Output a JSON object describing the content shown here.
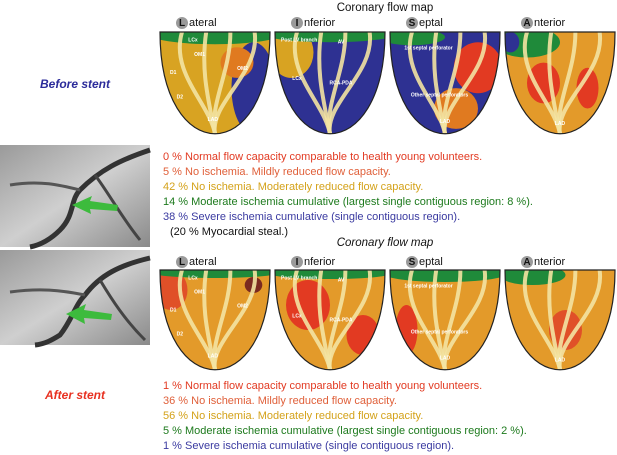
{
  "panels": [
    {
      "caption": "Before stent",
      "title": "Coronary flow map",
      "views": [
        {
          "initial": "L",
          "rest": "ateral",
          "labels": [
            "LCx",
            "OM1",
            "OM2",
            "D1",
            "D2",
            "LAD"
          ]
        },
        {
          "initial": "I",
          "rest": "nferior",
          "labels": [
            "Post LV branch",
            "AV",
            "LCx",
            "RCA-PDA"
          ]
        },
        {
          "initial": "S",
          "rest": "eptal",
          "labels": [
            "1st septal perforator",
            "Other septal perforators",
            "LAD"
          ]
        },
        {
          "initial": "A",
          "rest": "nterior",
          "labels": [
            "LAD"
          ]
        }
      ],
      "findings": [
        "0 % Normal flow capacity comparable to health young volunteers.",
        "5 % No ischemia. Mildly reduced flow capacity.",
        "42 % No ischemia. Moderately reduced flow capacity.",
        "14 % Moderate ischemia cumulative (largest single contiguous region: 8 %).",
        "38 % Severe ischemia cumulative (single contiguous region)."
      ],
      "note": "(20 % Myocardial steal.)"
    },
    {
      "caption": "After stent",
      "title": "Coronary flow map",
      "views": [
        {
          "initial": "L",
          "rest": "ateral",
          "labels": [
            "LCx",
            "OM1",
            "OM2",
            "D1",
            "D2",
            "LAD"
          ]
        },
        {
          "initial": "I",
          "rest": "nferior",
          "labels": [
            "Post LV branch",
            "AV",
            "LCx",
            "RCA-PDA"
          ]
        },
        {
          "initial": "S",
          "rest": "eptal",
          "labels": [
            "1st septal perforator",
            "Other septal perforators",
            "LAD"
          ]
        },
        {
          "initial": "A",
          "rest": "nterior",
          "labels": [
            "LAD"
          ]
        }
      ],
      "findings": [
        "1 % Normal flow capacity comparable to health young volunteers.",
        "36 % No ischemia. Mildly reduced flow capacity.",
        "56 % No ischemia. Moderately reduced flow capacity.",
        "5 % Moderate ischemia cumulative (largest single contiguous region: 2 %).",
        "1 % Severe ischemia cumulative (single contiguous region)."
      ]
    }
  ]
}
